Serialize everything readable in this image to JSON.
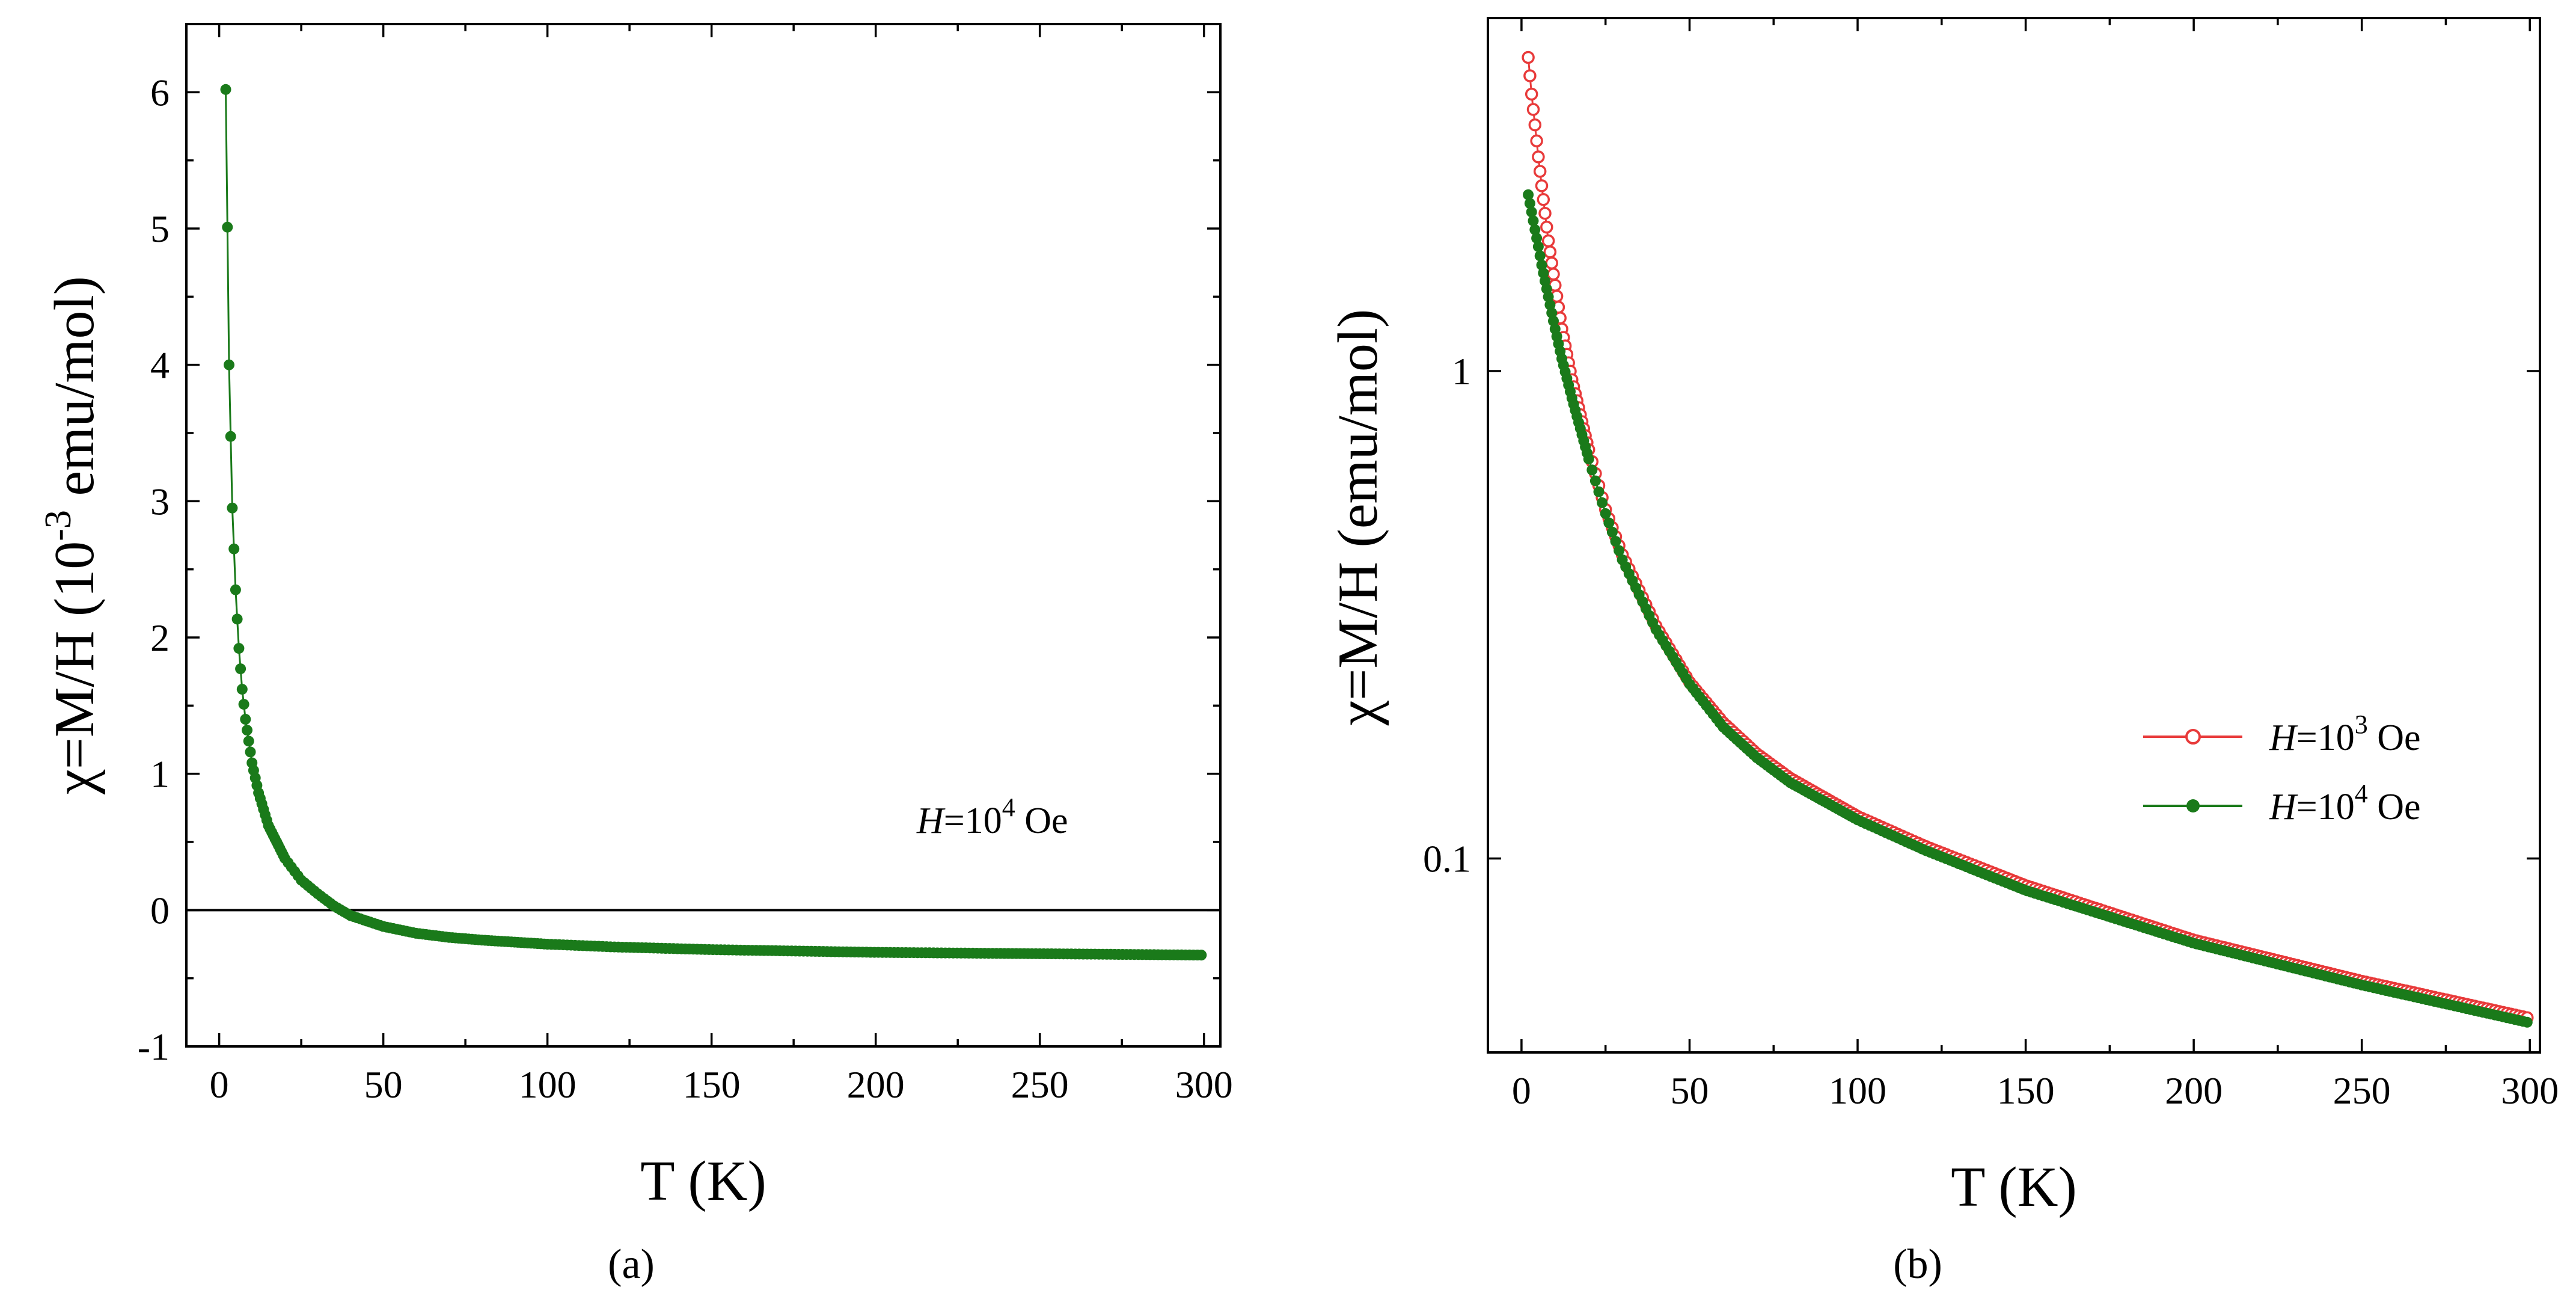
{
  "chart_data": [
    {
      "panel": "(a)",
      "type": "line",
      "xlabel": "T  (K)",
      "ylabel": "χ=M/H (10",
      "ylabel_sup": "-3",
      "ylabel_end": " emu/mol)",
      "xlim": [
        -10,
        305
      ],
      "ylim": [
        -1,
        6.5
      ],
      "xticks": [
        0,
        50,
        100,
        150,
        200,
        250,
        300
      ],
      "yticks": [
        -1,
        0,
        1,
        2,
        3,
        4,
        5,
        6
      ],
      "zero_line": true,
      "annotation": {
        "prefix": "H",
        "mid": "=10",
        "sup": "4",
        "suffix": " Oe"
      },
      "series": [
        {
          "name": "H=10^4 Oe",
          "color": "#1a7a1a",
          "marker": "filled-circle",
          "x": [
            2,
            3,
            4,
            5,
            6,
            7,
            8,
            10,
            12,
            15,
            20,
            25,
            30,
            35,
            40,
            50,
            60,
            70,
            80,
            100,
            120,
            150,
            200,
            250,
            300
          ],
          "y": [
            6.02,
            4.0,
            2.95,
            2.35,
            1.92,
            1.62,
            1.4,
            1.08,
            0.86,
            0.62,
            0.38,
            0.22,
            0.12,
            0.03,
            -0.04,
            -0.12,
            -0.17,
            -0.2,
            -0.22,
            -0.25,
            -0.27,
            -0.29,
            -0.31,
            -0.32,
            -0.33
          ]
        }
      ]
    },
    {
      "panel": "(b)",
      "type": "line",
      "scale_y": "log",
      "xlabel": "T  (K)",
      "ylabel": "χ=M/H (emu/mol)",
      "xlim": [
        -10,
        303
      ],
      "ylim": [
        0.04,
        5.3
      ],
      "xticks": [
        0,
        50,
        100,
        150,
        200,
        250,
        300
      ],
      "yticks": [
        0.1,
        1
      ],
      "ytick_labels": [
        "0.1",
        "1"
      ],
      "legend_position": "right-middle",
      "series": [
        {
          "name": "H=10^3 Oe",
          "legend": {
            "prefix": "H",
            "mid": "=10",
            "sup": "3",
            "suffix": " Oe"
          },
          "color": "#e83a3a",
          "marker": "open-circle",
          "x": [
            2,
            3,
            4,
            5,
            6,
            8,
            10,
            12,
            15,
            20,
            25,
            30,
            40,
            50,
            60,
            70,
            80,
            100,
            120,
            150,
            200,
            250,
            300
          ],
          "y": [
            4.4,
            3.7,
            3.2,
            2.75,
            2.4,
            1.85,
            1.5,
            1.22,
            0.96,
            0.69,
            0.52,
            0.42,
            0.3,
            0.23,
            0.19,
            0.164,
            0.146,
            0.122,
            0.106,
            0.088,
            0.068,
            0.056,
            0.047
          ]
        },
        {
          "name": "H=10^4 Oe",
          "legend": {
            "prefix": "H",
            "mid": "=10",
            "sup": "4",
            "suffix": " Oe"
          },
          "color": "#1a7a1a",
          "marker": "filled-circle",
          "x": [
            2,
            3,
            4,
            5,
            6,
            8,
            10,
            12,
            15,
            20,
            25,
            30,
            40,
            50,
            60,
            70,
            80,
            100,
            120,
            150,
            200,
            250,
            300
          ],
          "y": [
            2.3,
            2.12,
            1.95,
            1.8,
            1.65,
            1.42,
            1.22,
            1.06,
            0.88,
            0.66,
            0.51,
            0.41,
            0.295,
            0.228,
            0.186,
            0.161,
            0.143,
            0.12,
            0.104,
            0.086,
            0.067,
            0.055,
            0.046
          ]
        }
      ]
    }
  ]
}
